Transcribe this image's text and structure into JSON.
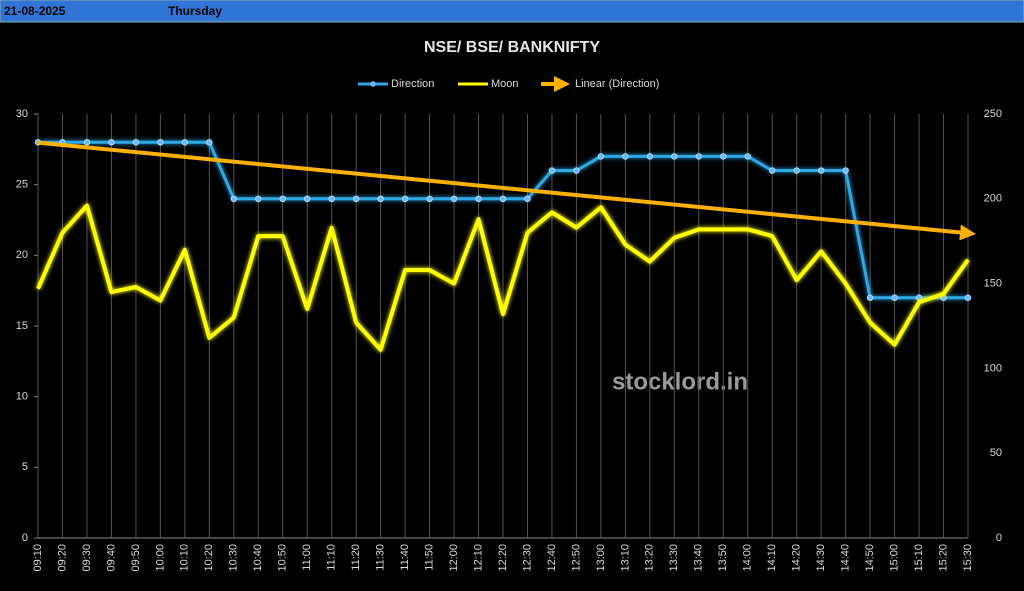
{
  "header": {
    "date": "21-08-2025",
    "day": "Thursday"
  },
  "chart_data": {
    "type": "line",
    "title": "NSE/ BSE/ BANKNIFTY",
    "watermark": "stocklord.in",
    "categories": [
      "09:10",
      "09:20",
      "09:30",
      "09:40",
      "09:50",
      "10:00",
      "10:10",
      "10:20",
      "10:30",
      "10:40",
      "10:50",
      "11:00",
      "11:10",
      "11:20",
      "11:30",
      "11:40",
      "11:50",
      "12:00",
      "12:10",
      "12:20",
      "12:30",
      "12:40",
      "12:50",
      "13:00",
      "13:10",
      "13:20",
      "13:30",
      "13:40",
      "13:50",
      "14:00",
      "14:10",
      "14:20",
      "14:30",
      "14:40",
      "14:50",
      "15:00",
      "15:10",
      "15:20",
      "15:30"
    ],
    "series": [
      {
        "name": "Direction",
        "color": "#2ea8e6",
        "values": [
          28,
          28,
          28,
          28,
          28,
          28,
          28,
          28,
          24,
          24,
          24,
          24,
          24,
          24,
          24,
          24,
          24,
          24,
          24,
          24,
          24,
          26,
          26,
          27,
          27,
          27,
          27,
          27,
          27,
          27,
          26,
          26,
          26,
          26,
          17,
          17,
          17,
          17,
          17
        ]
      },
      {
        "name": "Moon",
        "color": "#ffff00",
        "axis": "y2",
        "values": [
          147,
          180,
          196,
          145,
          148,
          140,
          170,
          118,
          130,
          178,
          178,
          135,
          183,
          127,
          111,
          158,
          158,
          150,
          188,
          132,
          180,
          192,
          183,
          195,
          173,
          163,
          177,
          182,
          182,
          182,
          178,
          152,
          169,
          150,
          127,
          114,
          139,
          144,
          164
        ]
      }
    ],
    "trendline": {
      "name": "Linear (Direction)",
      "color": "#ffb000"
    },
    "ylim": [
      0,
      30
    ],
    "yticks": [
      0,
      5,
      10,
      15,
      20,
      25,
      30
    ],
    "y2lim": [
      0,
      250
    ],
    "y2ticks": [
      0,
      50,
      100,
      150,
      200,
      250
    ],
    "grid": true
  }
}
